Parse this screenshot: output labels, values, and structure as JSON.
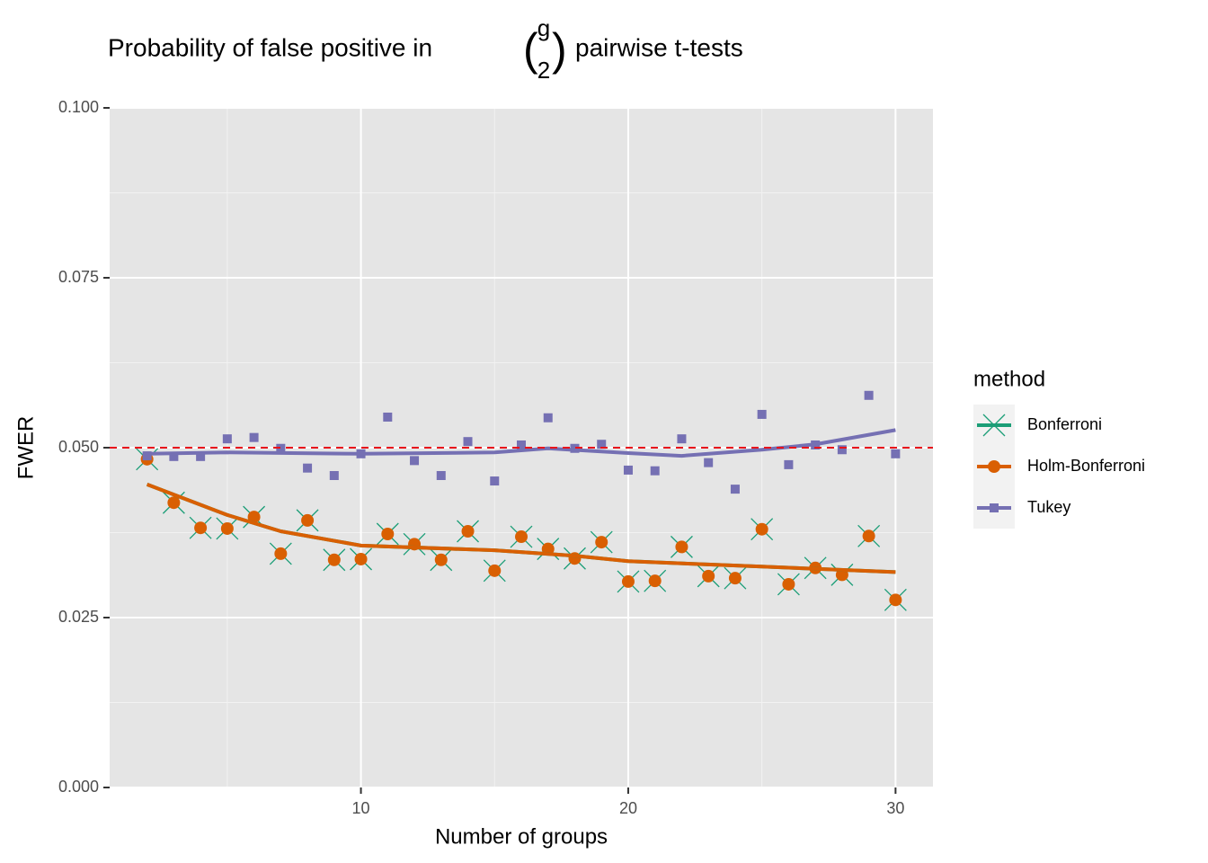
{
  "chart_data": {
    "type": "scatter",
    "title": {
      "before": "Probability of false positive in",
      "binom_top": "g",
      "binom_bottom": "2",
      "after": "pairwise t-tests"
    },
    "x_label": "Number of groups",
    "y_label": "FWER",
    "xlim": [
      0.6,
      31.4
    ],
    "xticks": [
      10,
      20,
      30
    ],
    "x_minor_ticks": [
      5,
      15,
      25
    ],
    "ylim": [
      0,
      0.1
    ],
    "yticks": [
      {
        "value": 0,
        "label": "0.000"
      },
      {
        "value": 0.025,
        "label": "0.025"
      },
      {
        "value": 0.05,
        "label": "0.050"
      },
      {
        "value": 0.075,
        "label": "0.075"
      },
      {
        "value": 0.1,
        "label": "0.100"
      }
    ],
    "y_minor_ticks": [
      0.0125,
      0.0375,
      0.0625,
      0.0875
    ],
    "grid": true,
    "reference_line": {
      "value": 0.05,
      "color": "#e8131b"
    },
    "legend_title": "method",
    "legend_position": "right",
    "x": [
      2,
      3,
      4,
      5,
      6,
      7,
      8,
      9,
      10,
      11,
      12,
      13,
      14,
      15,
      16,
      17,
      18,
      19,
      20,
      21,
      22,
      23,
      24,
      25,
      26,
      27,
      28,
      29,
      30
    ],
    "series": [
      {
        "name": "Bonferroni",
        "color": "#1b9e77",
        "shape": "x",
        "values": [
          0.0483,
          0.0419,
          0.0382,
          0.0381,
          0.0398,
          0.0344,
          0.0393,
          0.0335,
          0.0336,
          0.0373,
          0.0358,
          0.0335,
          0.0377,
          0.0319,
          0.0369,
          0.0351,
          0.0337,
          0.0361,
          0.0303,
          0.0304,
          0.0354,
          0.0311,
          0.0308,
          0.038,
          0.0299,
          0.0323,
          0.0313,
          0.037,
          0.0276
        ],
        "smooth": {
          "x": [
            2,
            5,
            7,
            10,
            15,
            18,
            20,
            25,
            30
          ],
          "values": [
            0.0446,
            0.0401,
            0.0377,
            0.0356,
            0.0349,
            0.0341,
            0.0333,
            0.0325,
            0.0317
          ]
        }
      },
      {
        "name": "Holm-Bonferroni",
        "color": "#d95f02",
        "shape": "circle",
        "values": [
          0.0483,
          0.0419,
          0.0382,
          0.0381,
          0.0398,
          0.0344,
          0.0393,
          0.0335,
          0.0336,
          0.0373,
          0.0358,
          0.0335,
          0.0377,
          0.0319,
          0.0369,
          0.0351,
          0.0337,
          0.0361,
          0.0303,
          0.0304,
          0.0354,
          0.0311,
          0.0308,
          0.038,
          0.0299,
          0.0323,
          0.0313,
          0.037,
          0.0276
        ],
        "smooth": {
          "x": [
            2,
            5,
            7,
            10,
            15,
            18,
            20,
            25,
            30
          ],
          "values": [
            0.0446,
            0.0401,
            0.0377,
            0.0356,
            0.0349,
            0.0341,
            0.0333,
            0.0325,
            0.0317
          ]
        }
      },
      {
        "name": "Tukey",
        "color": "#7570b3",
        "shape": "square",
        "values": [
          0.0488,
          0.0487,
          0.0487,
          0.0513,
          0.0515,
          0.0499,
          0.047,
          0.0459,
          0.0491,
          0.0545,
          0.0481,
          0.0459,
          0.0509,
          0.0451,
          0.0504,
          0.0544,
          0.0499,
          0.0505,
          0.0467,
          0.0466,
          0.0513,
          0.0478,
          0.0439,
          0.0549,
          0.0475,
          0.0504,
          0.0497,
          0.0577,
          0.0491
        ],
        "smooth": {
          "x": [
            2,
            5,
            10,
            15,
            17,
            20,
            22,
            25,
            27,
            30
          ],
          "values": [
            0.0491,
            0.0493,
            0.0491,
            0.0493,
            0.0499,
            0.0492,
            0.0488,
            0.0497,
            0.0505,
            0.0526
          ]
        }
      }
    ]
  }
}
